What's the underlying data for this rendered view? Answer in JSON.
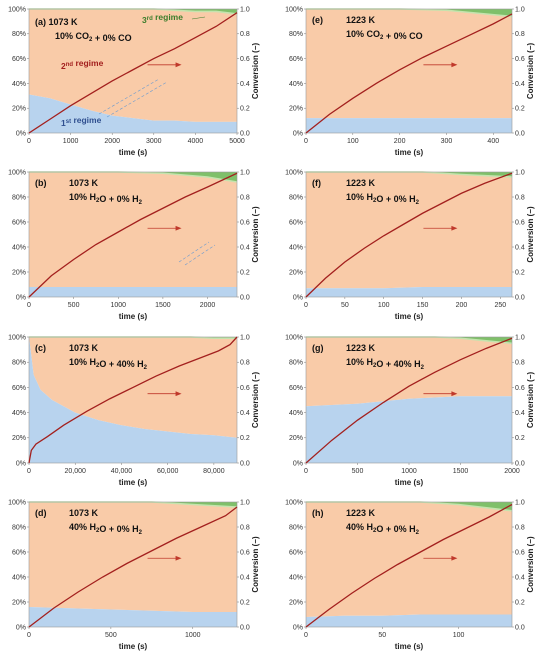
{
  "figure": {
    "panels": [
      {
        "id": "a",
        "label": "(a)",
        "temp": "1073 K",
        "gas": [
          [
            "10% CO"
          ],
          [
            "2",
            "sub"
          ],
          [
            " + 0% CO"
          ]
        ],
        "xmax": 5000,
        "xticks": [
          0,
          1000,
          2000,
          3000,
          4000,
          5000
        ],
        "xtick_labels": [
          "0",
          "1000",
          "2000",
          "3000",
          "4000",
          "5000"
        ],
        "xlabel": "time (s)",
        "ylabel": "Conversion (−)"
      },
      {
        "id": "e",
        "label": "(e)",
        "temp": "1223 K",
        "gas": [
          [
            "10% CO"
          ],
          [
            "2",
            "sub"
          ],
          [
            " + 0% CO"
          ]
        ],
        "xmax": 440,
        "xticks": [
          0,
          100,
          200,
          300,
          400
        ],
        "xtick_labels": [
          "0",
          "100",
          "200",
          "300",
          "400"
        ],
        "xlabel": "time (s)",
        "ylabel": "Conversion (−)"
      },
      {
        "id": "b",
        "label": "(b)",
        "temp": "1073 K",
        "gas": [
          [
            "10% H"
          ],
          [
            "2",
            "sub"
          ],
          [
            "O + 0% H"
          ],
          [
            "2",
            "sub"
          ]
        ],
        "xmax": 2330,
        "xticks": [
          0,
          500,
          1000,
          1500,
          2000
        ],
        "xtick_labels": [
          "0",
          "500",
          "1000",
          "1500",
          "2000"
        ],
        "xlabel": "time (s)",
        "ylabel": "Conversion (−)"
      },
      {
        "id": "f",
        "label": "(f)",
        "temp": "1223 K",
        "gas": [
          [
            "10% H"
          ],
          [
            "2",
            "sub"
          ],
          [
            "O + 0% H"
          ],
          [
            "2",
            "sub"
          ]
        ],
        "xmax": 265,
        "xticks": [
          0,
          50,
          100,
          150,
          200,
          250
        ],
        "xtick_labels": [
          "0",
          "50",
          "100",
          "150",
          "200",
          "250"
        ],
        "xlabel": "time (s)",
        "ylabel": "Conversion (−)"
      },
      {
        "id": "c",
        "label": "(c)",
        "temp": "1073 K",
        "gas": [
          [
            "10% H"
          ],
          [
            "2",
            "sub"
          ],
          [
            "O + 40% H"
          ],
          [
            "2",
            "sub"
          ]
        ],
        "xmax": 90000,
        "xticks": [
          0,
          20000,
          40000,
          60000,
          80000
        ],
        "xtick_labels": [
          "0",
          "20,000",
          "40,000",
          "60,000",
          "80,000"
        ],
        "xlabel": "time (s)",
        "ylabel": "Conversion (−)"
      },
      {
        "id": "g",
        "label": "(g)",
        "temp": "1223 K",
        "gas": [
          [
            "10% H"
          ],
          [
            "2",
            "sub"
          ],
          [
            "O + 40% H"
          ],
          [
            "2",
            "sub"
          ]
        ],
        "xmax": 2000,
        "xticks": [
          0,
          500,
          1000,
          1500,
          2000
        ],
        "xtick_labels": [
          "0",
          "500",
          "1000",
          "1500",
          "2000"
        ],
        "xlabel": "time (s)",
        "ylabel": "Conversion (−)"
      },
      {
        "id": "d",
        "label": "(d)",
        "temp": "1073 K",
        "gas": [
          [
            "40% H"
          ],
          [
            "2",
            "sub"
          ],
          [
            "O + 0% H"
          ],
          [
            "2",
            "sub"
          ]
        ],
        "xmax": 1270,
        "xticks": [
          0,
          500,
          1000
        ],
        "xtick_labels": [
          "0",
          "500",
          "1000"
        ],
        "xlabel": "time (s)",
        "ylabel": "Conversion (−)"
      },
      {
        "id": "h",
        "label": "(h)",
        "temp": "1223 K",
        "gas": [
          [
            "40% H"
          ],
          [
            "2",
            "sub"
          ],
          [
            "O + 0% H"
          ],
          [
            "2",
            "sub"
          ]
        ],
        "xmax": 135,
        "xticks": [
          0,
          50,
          100
        ],
        "xtick_labels": [
          "0",
          "50",
          "100"
        ],
        "xlabel": "time (s)",
        "ylabel": "Conversion (−)"
      }
    ],
    "y_left_ticks": [
      "0%",
      "20%",
      "40%",
      "60%",
      "80%",
      "100%"
    ],
    "y_right_ticks": [
      "0.0",
      "0.2",
      "0.4",
      "0.6",
      "0.8",
      "1.0"
    ],
    "regime_labels": {
      "first": [
        [
          "1"
        ],
        [
          "st",
          "sup"
        ],
        [
          " regime"
        ]
      ],
      "second": [
        [
          "2"
        ],
        [
          "nd",
          "sup"
        ],
        [
          " regime"
        ]
      ],
      "third": [
        [
          "3"
        ],
        [
          "rd",
          "sup"
        ],
        [
          " regime"
        ]
      ]
    },
    "colors": {
      "regime1": "#b8d3ee",
      "regime2": "#f9cba8",
      "regime3": "#7fc06a",
      "regime3_light": "#c5e3ae",
      "conversion": "#a3201e",
      "arrow": "#c0392b",
      "regime1_text": "#2f4f8f",
      "regime2_text": "#a3201e",
      "regime3_text": "#3b7d2b",
      "dashed": "#6a9bd1"
    }
  },
  "chart_data": [
    {
      "panel": "a",
      "type": "area",
      "x": [
        0,
        500,
        1000,
        1500,
        2000,
        2500,
        3000,
        3500,
        4000,
        4500,
        5000
      ],
      "series": [
        {
          "name": "1st regime",
          "values": [
            0.31,
            0.28,
            0.23,
            0.18,
            0.14,
            0.12,
            0.1,
            0.1,
            0.09,
            0.09,
            0.09
          ]
        },
        {
          "name": "2nd regime",
          "values": [
            0.69,
            0.72,
            0.77,
            0.82,
            0.86,
            0.88,
            0.9,
            0.89,
            0.89,
            0.89,
            0.87
          ]
        },
        {
          "name": "3rd regime",
          "values": [
            0,
            0,
            0,
            0,
            0,
            0,
            0,
            0.01,
            0.02,
            0.02,
            0.04
          ]
        }
      ],
      "conversion": {
        "x": [
          0,
          500,
          1000,
          1500,
          2000,
          2500,
          3000,
          3500,
          4000,
          4500,
          5000
        ],
        "y": [
          0,
          0.11,
          0.22,
          0.32,
          0.42,
          0.51,
          0.6,
          0.68,
          0.77,
          0.86,
          0.97
        ]
      },
      "ylim_left": [
        0,
        100
      ],
      "ylim_right": [
        0,
        1
      ]
    },
    {
      "panel": "e",
      "type": "area",
      "x": [
        0,
        100,
        200,
        300,
        440
      ],
      "series": [
        {
          "name": "1st regime",
          "values": [
            0.12,
            0.12,
            0.12,
            0.12,
            0.12
          ]
        },
        {
          "name": "2nd regime",
          "values": [
            0.88,
            0.88,
            0.88,
            0.87,
            0.82
          ]
        },
        {
          "name": "3rd regime",
          "values": [
            0,
            0,
            0,
            0.01,
            0.06
          ]
        }
      ],
      "conversion": {
        "x": [
          0,
          50,
          100,
          150,
          200,
          250,
          300,
          350,
          400,
          440
        ],
        "y": [
          0,
          0.15,
          0.28,
          0.4,
          0.51,
          0.61,
          0.7,
          0.79,
          0.88,
          0.96
        ]
      },
      "ylim_left": [
        0,
        100
      ],
      "ylim_right": [
        0,
        1
      ]
    },
    {
      "panel": "b",
      "type": "area",
      "x": [
        0,
        500,
        1000,
        1500,
        2000,
        2330
      ],
      "series": [
        {
          "name": "1st regime",
          "values": [
            0.08,
            0.08,
            0.08,
            0.08,
            0.08,
            0.08
          ]
        },
        {
          "name": "2nd regime",
          "values": [
            0.92,
            0.92,
            0.92,
            0.91,
            0.88,
            0.84
          ]
        },
        {
          "name": "3rd regime",
          "values": [
            0,
            0,
            0,
            0.01,
            0.04,
            0.08
          ]
        }
      ],
      "conversion": {
        "x": [
          0,
          250,
          500,
          750,
          1000,
          1250,
          1500,
          1750,
          2000,
          2330
        ],
        "y": [
          0,
          0.17,
          0.3,
          0.42,
          0.52,
          0.62,
          0.71,
          0.8,
          0.88,
          0.99
        ]
      },
      "ylim_left": [
        0,
        100
      ],
      "ylim_right": [
        0,
        1
      ]
    },
    {
      "panel": "f",
      "type": "area",
      "x": [
        0,
        50,
        100,
        150,
        200,
        265
      ],
      "series": [
        {
          "name": "1st regime",
          "values": [
            0.07,
            0.07,
            0.07,
            0.08,
            0.08,
            0.08
          ]
        },
        {
          "name": "2nd regime",
          "values": [
            0.93,
            0.93,
            0.93,
            0.92,
            0.9,
            0.88
          ]
        },
        {
          "name": "3rd regime",
          "values": [
            0,
            0,
            0,
            0,
            0.02,
            0.04
          ]
        }
      ],
      "conversion": {
        "x": [
          0,
          25,
          50,
          75,
          100,
          125,
          150,
          175,
          200,
          230,
          265
        ],
        "y": [
          0,
          0.15,
          0.28,
          0.39,
          0.49,
          0.58,
          0.67,
          0.75,
          0.83,
          0.91,
          0.99
        ]
      },
      "ylim_left": [
        0,
        100
      ],
      "ylim_right": [
        0,
        1
      ]
    },
    {
      "panel": "c",
      "type": "area",
      "x": [
        0,
        2000,
        5000,
        10000,
        20000,
        30000,
        40000,
        50000,
        60000,
        70000,
        80000,
        90000
      ],
      "series": [
        {
          "name": "1st regime",
          "values": [
            1.0,
            0.7,
            0.58,
            0.5,
            0.4,
            0.34,
            0.3,
            0.27,
            0.25,
            0.23,
            0.22,
            0.2
          ]
        },
        {
          "name": "2nd regime",
          "values": [
            0,
            0.3,
            0.42,
            0.5,
            0.6,
            0.66,
            0.7,
            0.73,
            0.75,
            0.77,
            0.77,
            0.79
          ]
        },
        {
          "name": "3rd regime",
          "values": [
            0,
            0,
            0,
            0,
            0,
            0,
            0,
            0,
            0,
            0,
            0.01,
            0.01
          ]
        }
      ],
      "conversion": {
        "x": [
          0,
          1000,
          3000,
          8000,
          15000,
          25000,
          35000,
          45000,
          55000,
          65000,
          75000,
          82000,
          87000,
          90000
        ],
        "y": [
          0,
          0.1,
          0.15,
          0.21,
          0.3,
          0.41,
          0.51,
          0.6,
          0.69,
          0.77,
          0.84,
          0.89,
          0.94,
          1.0
        ]
      },
      "ylim_left": [
        0,
        100
      ],
      "ylim_right": [
        0,
        1
      ]
    },
    {
      "panel": "g",
      "type": "area",
      "x": [
        0,
        250,
        500,
        750,
        1000,
        1250,
        1500,
        1750,
        2000
      ],
      "series": [
        {
          "name": "1st regime",
          "values": [
            0.45,
            0.46,
            0.47,
            0.49,
            0.51,
            0.52,
            0.53,
            0.53,
            0.53
          ]
        },
        {
          "name": "2nd regime",
          "values": [
            0.55,
            0.54,
            0.53,
            0.51,
            0.49,
            0.48,
            0.46,
            0.44,
            0.42
          ]
        },
        {
          "name": "3rd regime",
          "values": [
            0,
            0,
            0,
            0,
            0,
            0,
            0.01,
            0.03,
            0.05
          ]
        }
      ],
      "conversion": {
        "x": [
          0,
          250,
          500,
          750,
          1000,
          1250,
          1500,
          1750,
          2000
        ],
        "y": [
          0,
          0.18,
          0.34,
          0.48,
          0.61,
          0.72,
          0.82,
          0.91,
          0.99
        ]
      },
      "ylim_left": [
        0,
        100
      ],
      "ylim_right": [
        0,
        1
      ]
    },
    {
      "panel": "d",
      "type": "area",
      "x": [
        0,
        250,
        500,
        750,
        1000,
        1270
      ],
      "series": [
        {
          "name": "1st regime",
          "values": [
            0.16,
            0.15,
            0.14,
            0.13,
            0.12,
            0.12
          ]
        },
        {
          "name": "2nd regime",
          "values": [
            0.84,
            0.85,
            0.86,
            0.87,
            0.86,
            0.84
          ]
        },
        {
          "name": "3rd regime",
          "values": [
            0,
            0,
            0,
            0,
            0.02,
            0.04
          ]
        }
      ],
      "conversion": {
        "x": [
          0,
          150,
          300,
          450,
          600,
          750,
          900,
          1050,
          1200,
          1270
        ],
        "y": [
          0,
          0.15,
          0.28,
          0.4,
          0.51,
          0.61,
          0.71,
          0.8,
          0.89,
          0.96
        ]
      },
      "ylim_left": [
        0,
        100
      ],
      "ylim_right": [
        0,
        1
      ]
    },
    {
      "panel": "h",
      "type": "area",
      "x": [
        0,
        25,
        50,
        75,
        100,
        135
      ],
      "series": [
        {
          "name": "1st regime",
          "values": [
            0.08,
            0.09,
            0.09,
            0.1,
            0.1,
            0.1
          ]
        },
        {
          "name": "2nd regime",
          "values": [
            0.92,
            0.91,
            0.91,
            0.9,
            0.88,
            0.83
          ]
        },
        {
          "name": "3rd regime",
          "values": [
            0,
            0,
            0,
            0,
            0.02,
            0.07
          ]
        }
      ],
      "conversion": {
        "x": [
          0,
          15,
          30,
          45,
          60,
          75,
          90,
          105,
          120,
          135
        ],
        "y": [
          0,
          0.14,
          0.27,
          0.39,
          0.5,
          0.6,
          0.7,
          0.79,
          0.88,
          0.98
        ]
      },
      "ylim_left": [
        0,
        100
      ],
      "ylim_right": [
        0,
        1
      ]
    }
  ]
}
